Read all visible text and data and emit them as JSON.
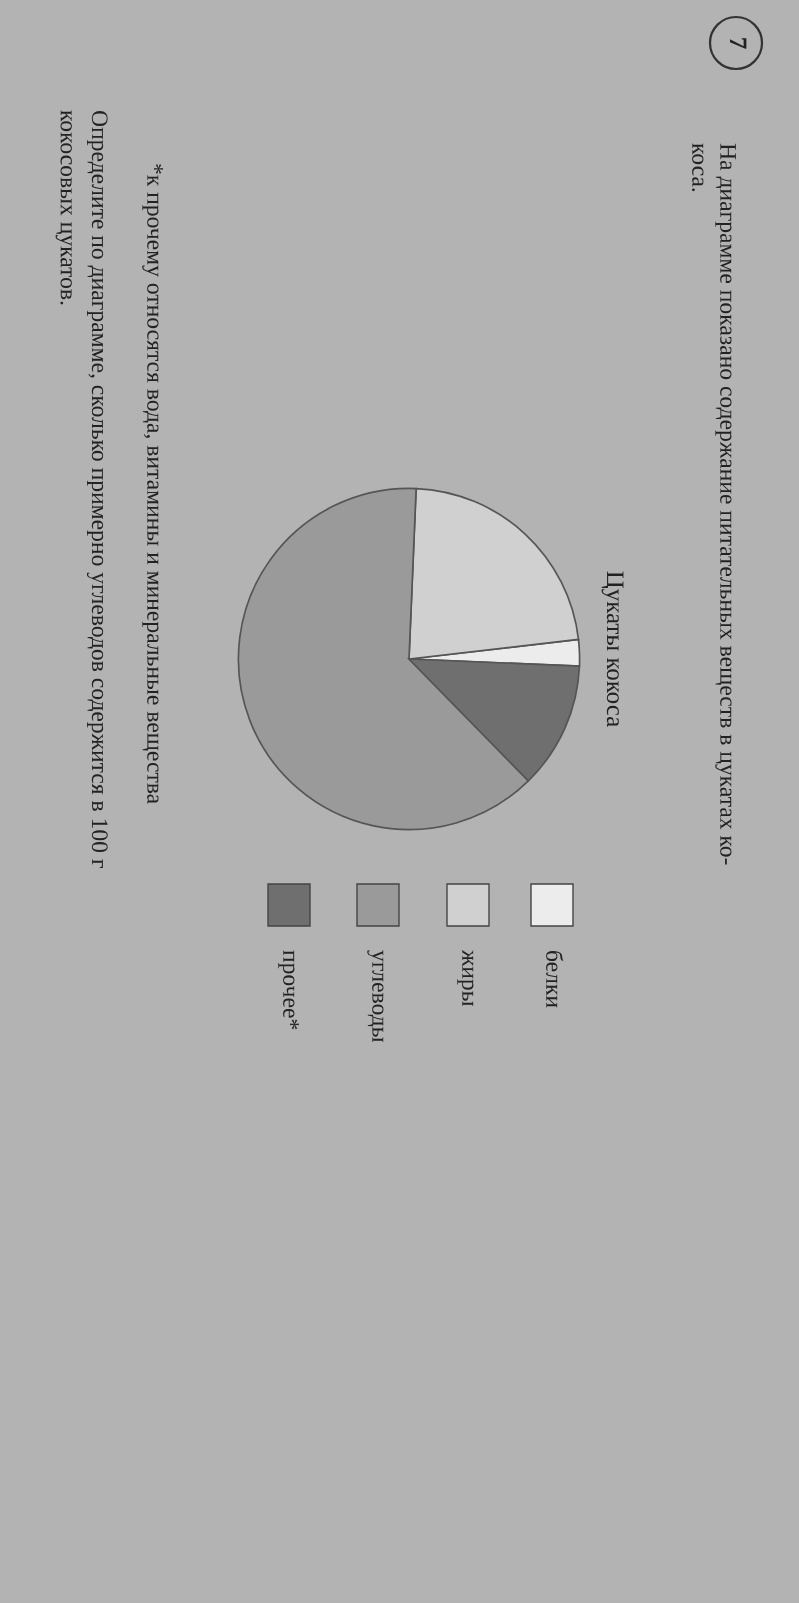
{
  "chart_data": {
    "type": "pie",
    "title": "На диаграмме показано содержание питательных веществ в цукатах ко-\nкоса.",
    "subtitle": "Цукаты кокоса",
    "categories": [
      "белки",
      "жиры",
      "углеводы",
      "прочее*"
    ],
    "values": [
      2.5,
      22.5,
      63,
      12
    ],
    "colors": [
      "#ececec",
      "#d0d0d0",
      "#9a9a9a",
      "#6f6f6f"
    ],
    "legend": "right",
    "annotations": [
      "7",
      "*к прочему относятся вода, витамины и минеральные вещества",
      "Определите по диаграмме, сколько примерно углеводов содержится в 100 г\nкокосовых цукатов."
    ]
  }
}
